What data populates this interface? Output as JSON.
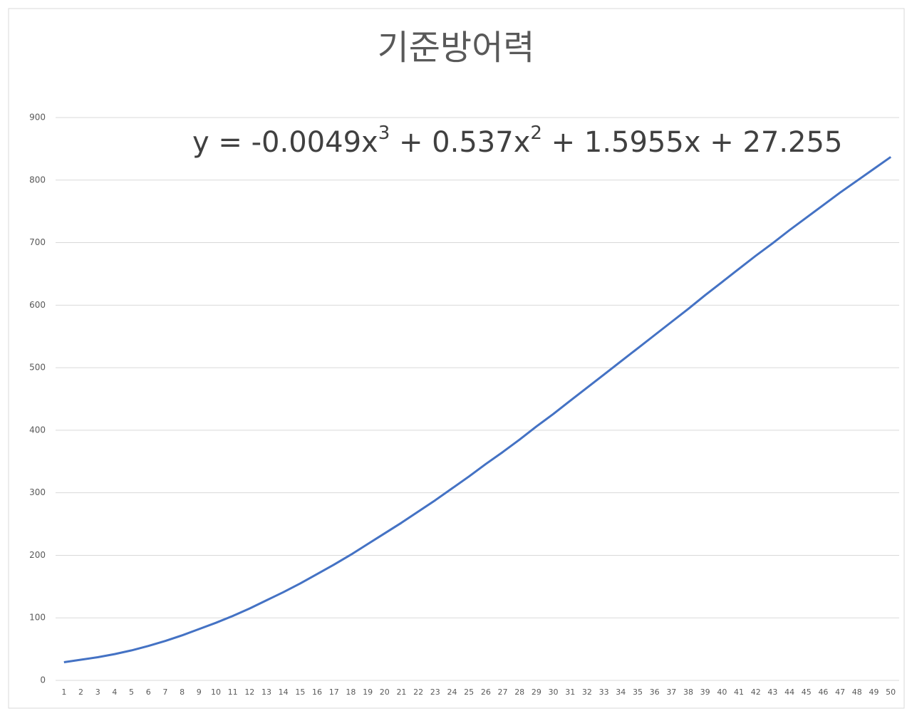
{
  "chart_data": {
    "type": "line",
    "title": "기준방어력",
    "annotation": [
      "y = -0.0049x",
      "3",
      " + 0.537x",
      "2",
      " + 1.5955x + 27.255"
    ],
    "categories": [
      "1",
      "2",
      "3",
      "4",
      "5",
      "6",
      "7",
      "8",
      "9",
      "10",
      "11",
      "12",
      "13",
      "14",
      "15",
      "16",
      "17",
      "18",
      "19",
      "20",
      "21",
      "22",
      "23",
      "24",
      "25",
      "26",
      "27",
      "28",
      "29",
      "30",
      "31",
      "32",
      "33",
      "34",
      "35",
      "36",
      "37",
      "38",
      "39",
      "40",
      "41",
      "42",
      "43",
      "44",
      "45",
      "46",
      "47",
      "48",
      "49",
      "50"
    ],
    "values": [
      29,
      33,
      37,
      42,
      48,
      55,
      63,
      72,
      82,
      92,
      103,
      115,
      128,
      141,
      155,
      170,
      185,
      201,
      218,
      235,
      252,
      270,
      288,
      307,
      326,
      346,
      365,
      385,
      406,
      426,
      447,
      468,
      489,
      510,
      531,
      552,
      573,
      594,
      616,
      637,
      658,
      679,
      699,
      720,
      740,
      760,
      780,
      799,
      818,
      837
    ],
    "color": "#4472c4",
    "ylim": [
      0,
      900
    ],
    "yticks": [
      0,
      100,
      200,
      300,
      400,
      500,
      600,
      700,
      800,
      900
    ],
    "grid": true
  }
}
